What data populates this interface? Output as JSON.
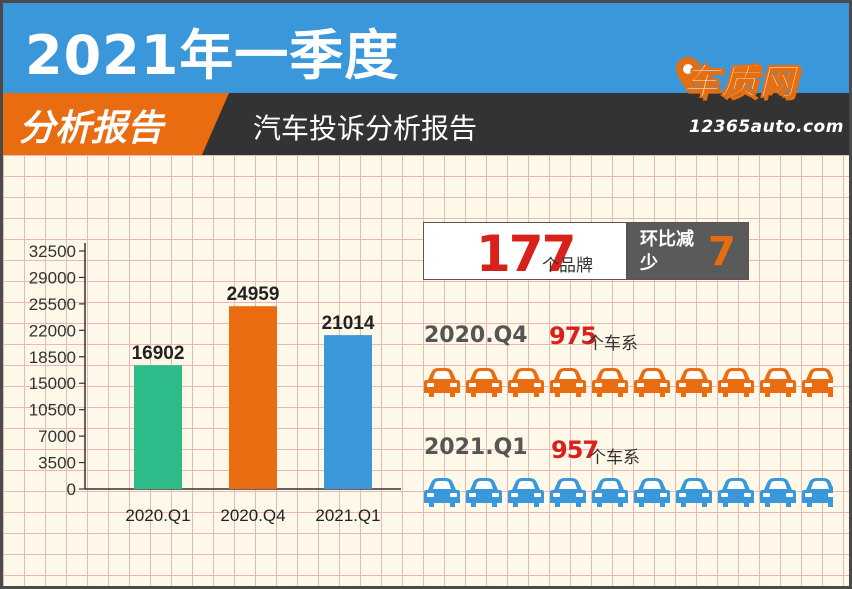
{
  "header": {
    "title": "2021年一季度",
    "tab_label": "分析报告",
    "subtitle": "汽车投诉分析报告",
    "brand_name": "车质网",
    "brand_url": "12365auto.com"
  },
  "summary": {
    "brands_count": "177",
    "brands_unit": "个品牌",
    "change_label": "环比减少",
    "change_value": "7"
  },
  "series_counts": [
    {
      "quarter": "2020.Q4",
      "count": "975",
      "unit": "个车系",
      "color": "#e96c10"
    },
    {
      "quarter": "2021.Q1",
      "count": "957",
      "unit": "个车系",
      "color": "#3a97da"
    }
  ],
  "chart_data": {
    "type": "bar",
    "categories": [
      "2020.Q1",
      "2020.Q4",
      "2021.Q1"
    ],
    "values": [
      16902,
      24959,
      21014
    ],
    "colors": [
      "#2dbb8a",
      "#e96c10",
      "#3a97da"
    ],
    "yticks": [
      0,
      3500,
      7000,
      10500,
      15000,
      18500,
      22000,
      25500,
      29000,
      32500
    ],
    "ylim": [
      0,
      32500
    ],
    "title": "",
    "xlabel": "",
    "ylabel": "",
    "grid": false
  }
}
